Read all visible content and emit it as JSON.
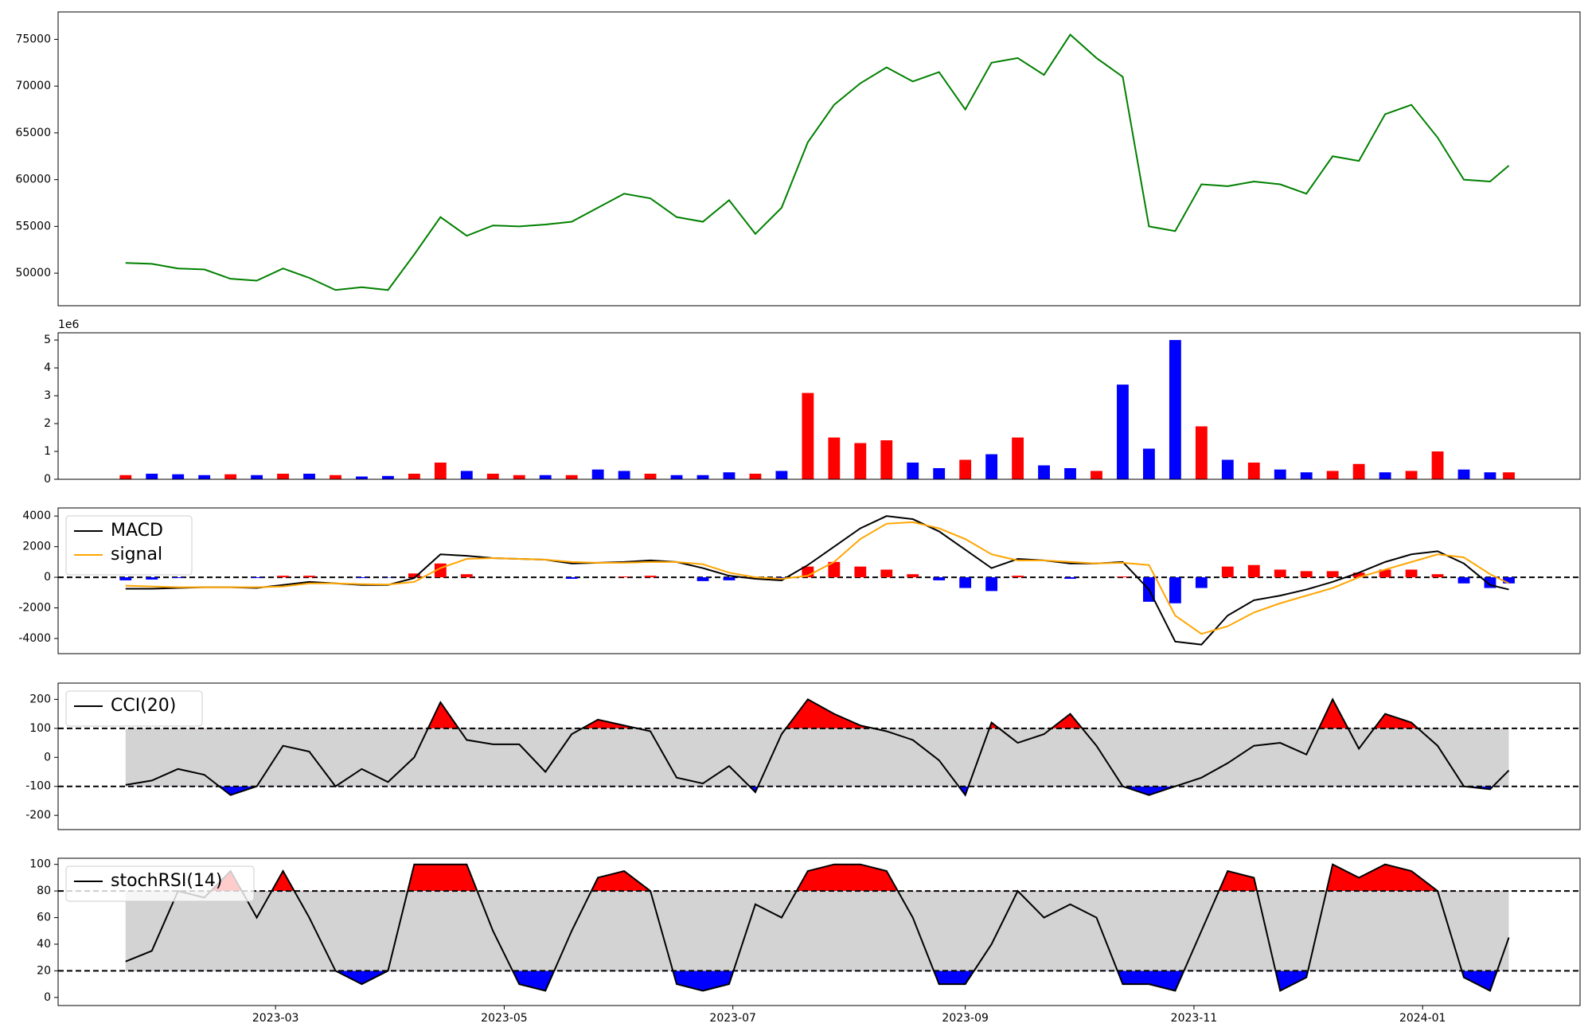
{
  "chart_data": [
    {
      "type": "line",
      "x": [
        19,
        26,
        33,
        40,
        47,
        54,
        61,
        68,
        75,
        82,
        89,
        96,
        103,
        110,
        117,
        124,
        131,
        138,
        145,
        152,
        159,
        166,
        173,
        180,
        187,
        194,
        201,
        208,
        215,
        222,
        229,
        236,
        243,
        250,
        257,
        264,
        271,
        278,
        285,
        292,
        299,
        306,
        313,
        320,
        327,
        334,
        341,
        348,
        355,
        362,
        369,
        376,
        383,
        388
      ],
      "xlim": [
        1,
        407
      ],
      "ylim": [
        46520,
        77930
      ],
      "yticks": [
        50000,
        55000,
        60000,
        65000,
        70000,
        75000
      ],
      "series": [
        {
          "color": "green",
          "values": [
            51100,
            51000,
            50500,
            50400,
            49400,
            49200,
            50500,
            49500,
            48200,
            48500,
            48200,
            52000,
            56000,
            54000,
            55100,
            55000,
            55200,
            55500,
            57000,
            58500,
            58000,
            56000,
            55500,
            57800,
            54200,
            57000,
            64000,
            68000,
            70300,
            72000,
            70500,
            71500,
            67500,
            72500,
            73000,
            71200,
            75500,
            73000,
            71000,
            55000,
            54500,
            59500,
            59300,
            59800,
            59500,
            58500,
            62500,
            62000,
            67000,
            68000,
            64500,
            60000,
            59800,
            61500
          ]
        }
      ]
    },
    {
      "type": "bar",
      "x": [
        19,
        26,
        33,
        40,
        47,
        54,
        61,
        68,
        75,
        82,
        89,
        96,
        103,
        110,
        117,
        124,
        131,
        138,
        145,
        152,
        159,
        166,
        173,
        180,
        187,
        194,
        201,
        208,
        215,
        222,
        229,
        236,
        243,
        250,
        257,
        264,
        271,
        278,
        285,
        292,
        299,
        306,
        313,
        320,
        327,
        334,
        341,
        348,
        355,
        362,
        369,
        376,
        383,
        388
      ],
      "xlim": [
        1,
        407
      ],
      "ylim": [
        0,
        5.26
      ],
      "yticks": [
        0,
        1,
        2,
        3,
        4,
        5
      ],
      "offset_label": "1e6",
      "values": [
        0.15,
        0.2,
        0.18,
        0.15,
        0.18,
        0.15,
        0.2,
        0.2,
        0.15,
        0.1,
        0.12,
        0.2,
        0.6,
        0.3,
        0.2,
        0.15,
        0.15,
        0.15,
        0.35,
        0.3,
        0.2,
        0.15,
        0.15,
        0.25,
        0.2,
        0.3,
        3.1,
        1.5,
        1.3,
        1.4,
        0.6,
        0.4,
        0.7,
        0.9,
        1.5,
        0.5,
        0.4,
        0.3,
        3.4,
        1.1,
        5.0,
        1.9,
        0.7,
        0.6,
        0.35,
        0.25,
        0.3,
        0.55,
        0.25,
        0.3,
        1.0,
        0.35,
        0.25,
        0.25
      ],
      "colors": [
        "red",
        "blue",
        "blue",
        "blue",
        "red",
        "blue",
        "red",
        "blue",
        "red",
        "blue",
        "blue",
        "red",
        "red",
        "blue",
        "red",
        "red",
        "blue",
        "red",
        "blue",
        "blue",
        "red",
        "blue",
        "blue",
        "blue",
        "red",
        "blue",
        "red",
        "red",
        "red",
        "red",
        "blue",
        "blue",
        "red",
        "blue",
        "red",
        "blue",
        "blue",
        "red",
        "blue",
        "blue",
        "blue",
        "red",
        "blue",
        "red",
        "blue",
        "blue",
        "red",
        "red",
        "blue",
        "red",
        "red",
        "blue",
        "blue",
        "red"
      ]
    },
    {
      "type": "line",
      "x": [
        19,
        26,
        33,
        40,
        47,
        54,
        61,
        68,
        75,
        82,
        89,
        96,
        103,
        110,
        117,
        124,
        131,
        138,
        145,
        152,
        159,
        166,
        173,
        180,
        187,
        194,
        201,
        208,
        215,
        222,
        229,
        236,
        243,
        250,
        257,
        264,
        271,
        278,
        285,
        292,
        299,
        306,
        313,
        320,
        327,
        334,
        341,
        348,
        355,
        362,
        369,
        376,
        383,
        388
      ],
      "xlim": [
        1,
        407
      ],
      "ylim": [
        -4990,
        4530
      ],
      "yticks": [
        -4000,
        -2000,
        0,
        2000,
        4000
      ],
      "reference_line": 0,
      "legend": "upper left",
      "histogram": {
        "up_color": "red",
        "down_color": "blue",
        "values": [
          -200,
          -150,
          -50,
          0,
          0,
          -50,
          100,
          100,
          0,
          -50,
          -20,
          250,
          900,
          200,
          0,
          0,
          0,
          -100,
          0,
          50,
          100,
          0,
          -250,
          -200,
          -100,
          -100,
          700,
          1000,
          700,
          500,
          200,
          -200,
          -700,
          -900,
          100,
          0,
          -100,
          0,
          50,
          -1600,
          -1700,
          -700,
          700,
          800,
          500,
          400,
          400,
          300,
          500,
          500,
          200,
          -400,
          -700,
          -400
        ]
      },
      "series": [
        {
          "name": "MACD",
          "color": "black",
          "values": [
            -750,
            -750,
            -700,
            -650,
            -650,
            -700,
            -500,
            -300,
            -400,
            -500,
            -500,
            -50,
            1500,
            1400,
            1250,
            1200,
            1150,
            900,
            950,
            1000,
            1100,
            1000,
            600,
            100,
            -100,
            -200,
            800,
            2000,
            3200,
            4000,
            3800,
            3000,
            1800,
            600,
            1200,
            1100,
            900,
            900,
            1000,
            -800,
            -4200,
            -4400,
            -2500,
            -1500,
            -1200,
            -800,
            -300,
            300,
            1000,
            1500,
            1700,
            900,
            -500,
            -800
          ]
        },
        {
          "name": "signal",
          "color": "orange",
          "values": [
            -550,
            -600,
            -650,
            -650,
            -650,
            -650,
            -600,
            -400,
            -400,
            -450,
            -480,
            -300,
            600,
            1200,
            1250,
            1200,
            1150,
            1000,
            950,
            950,
            1000,
            1000,
            850,
            300,
            0,
            -100,
            100,
            1000,
            2500,
            3500,
            3600,
            3200,
            2500,
            1500,
            1100,
            1100,
            1000,
            900,
            950,
            800,
            -2500,
            -3700,
            -3200,
            -2300,
            -1700,
            -1200,
            -700,
            0,
            500,
            1000,
            1500,
            1300,
            200,
            -400
          ]
        }
      ]
    },
    {
      "type": "line",
      "x": [
        19,
        26,
        33,
        40,
        47,
        54,
        61,
        68,
        75,
        82,
        89,
        96,
        103,
        110,
        117,
        124,
        131,
        138,
        145,
        152,
        159,
        166,
        173,
        180,
        187,
        194,
        201,
        208,
        215,
        222,
        229,
        236,
        243,
        250,
        257,
        264,
        271,
        278,
        285,
        292,
        299,
        306,
        313,
        320,
        327,
        334,
        341,
        348,
        355,
        362,
        369,
        376,
        383,
        388
      ],
      "xlim": [
        1,
        407
      ],
      "ylim": [
        -249,
        256
      ],
      "yticks": [
        -200,
        -100,
        0,
        100,
        200
      ],
      "thresholds": [
        -100,
        100
      ],
      "band_color": "lightgray",
      "above_color": "red",
      "below_color": "blue",
      "legend": "upper left",
      "series": [
        {
          "name": "CCI(20)",
          "color": "black",
          "values": [
            -95,
            -80,
            -40,
            -60,
            -130,
            -100,
            40,
            20,
            -100,
            -40,
            -85,
            0,
            190,
            60,
            45,
            45,
            -50,
            80,
            130,
            110,
            90,
            -70,
            -90,
            -30,
            -120,
            80,
            200,
            150,
            110,
            90,
            60,
            -10,
            -130,
            120,
            50,
            80,
            150,
            40,
            -100,
            -130,
            -100,
            -70,
            -20,
            40,
            50,
            10,
            200,
            30,
            150,
            120,
            40,
            -100,
            -110,
            -45
          ]
        }
      ]
    },
    {
      "type": "line",
      "x": [
        19,
        26,
        33,
        40,
        47,
        54,
        61,
        68,
        75,
        82,
        89,
        96,
        103,
        110,
        117,
        124,
        131,
        138,
        145,
        152,
        159,
        166,
        173,
        180,
        187,
        194,
        201,
        208,
        215,
        222,
        229,
        236,
        243,
        250,
        257,
        264,
        271,
        278,
        285,
        292,
        299,
        306,
        313,
        320,
        327,
        334,
        341,
        348,
        355,
        362,
        369,
        376,
        383,
        388
      ],
      "xlim": [
        1,
        407
      ],
      "ylim": [
        -6.1,
        104.6
      ],
      "yticks": [
        0,
        20,
        40,
        60,
        80,
        100
      ],
      "thresholds": [
        20,
        80
      ],
      "band_color": "lightgray",
      "above_color": "red",
      "below_color": "blue",
      "legend": "upper left",
      "xticks": [
        {
          "value": 59,
          "label": "2023-03"
        },
        {
          "value": 120,
          "label": "2023-05"
        },
        {
          "value": 181,
          "label": "2023-07"
        },
        {
          "value": 243,
          "label": "2023-09"
        },
        {
          "value": 304,
          "label": "2023-11"
        },
        {
          "value": 365,
          "label": "2024-01"
        }
      ],
      "series": [
        {
          "name": "stochRSI(14)",
          "color": "black",
          "values": [
            27,
            35,
            80,
            75,
            95,
            60,
            95,
            60,
            20,
            10,
            20,
            100,
            100,
            100,
            50,
            10,
            5,
            50,
            90,
            95,
            80,
            10,
            5,
            10,
            70,
            60,
            95,
            100,
            100,
            95,
            60,
            10,
            10,
            40,
            80,
            60,
            70,
            60,
            10,
            10,
            5,
            50,
            95,
            90,
            5,
            15,
            100,
            90,
            100,
            95,
            80,
            15,
            5,
            45
          ]
        }
      ]
    }
  ]
}
